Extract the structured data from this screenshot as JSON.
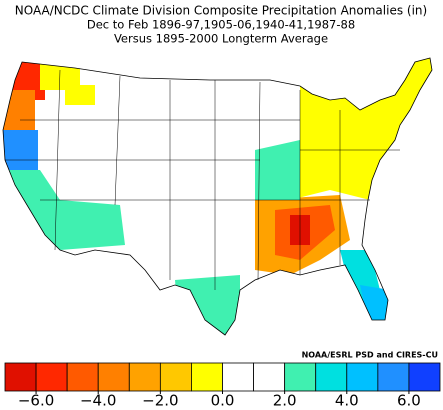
{
  "chart_data": {
    "type": "choropleth",
    "title": "NOAA/NCDC Climate Division Composite Precipitation Anomalies (in)",
    "subtitle": "Dec to Feb  1896-97,1905-06,1940-41,1987-88",
    "subtitle2": "Versus 1895-2000 Longterm Average",
    "credit": "NOAA/ESRL PSD and CIRES-CU",
    "colorbar": {
      "colors": [
        "#e01000",
        "#ff2800",
        "#ff5a00",
        "#ff8000",
        "#ffa200",
        "#ffc800",
        "#ffff00",
        "#ffffff",
        "#ffffff",
        "#40f0b0",
        "#00e0e0",
        "#00c0ff",
        "#2090ff",
        "#1040ff"
      ],
      "xlim": [
        -7,
        7
      ],
      "xticks": [
        {
          "value": -6,
          "label": "−6.0"
        },
        {
          "value": -4,
          "label": "−4.0"
        },
        {
          "value": -2,
          "label": "−2.0"
        },
        {
          "value": 0,
          "label": "0.0"
        },
        {
          "value": 2,
          "label": "2.0"
        },
        {
          "value": 4,
          "label": "4.0"
        },
        {
          "value": 6,
          "label": "6.0"
        }
      ]
    }
  }
}
